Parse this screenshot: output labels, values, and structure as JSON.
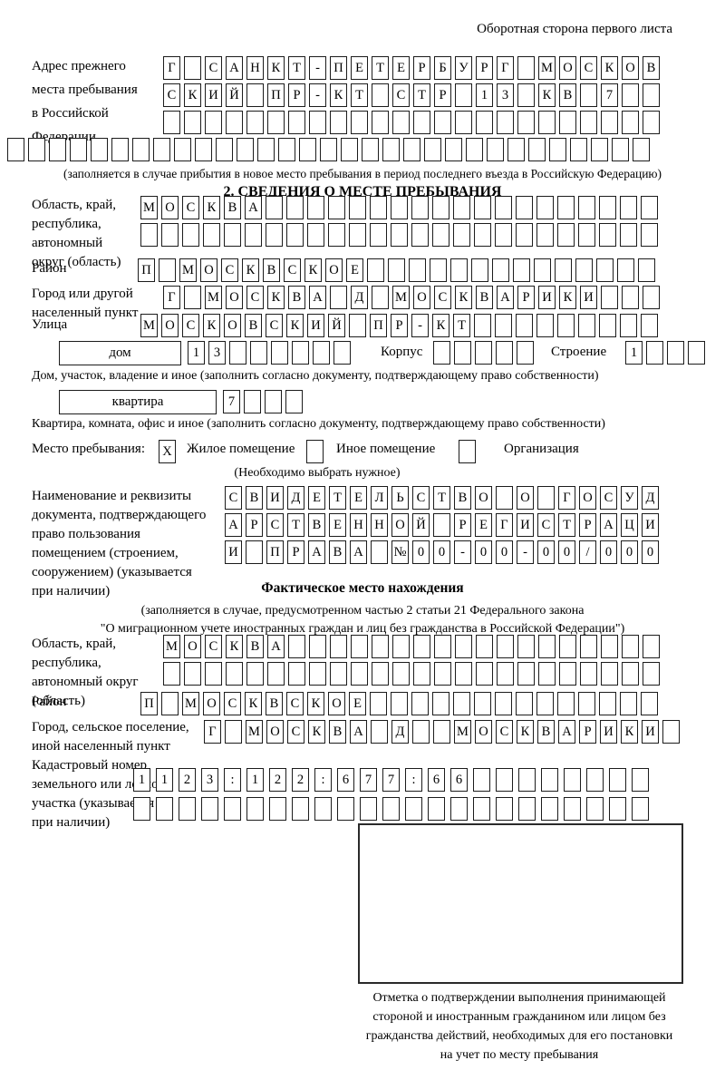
{
  "page": {
    "header_note": "Оборотная сторона первого листа"
  },
  "prev_address": {
    "label_lines": [
      "Адрес прежнего",
      "места пребывания",
      "в Российской",
      "Федерации"
    ],
    "rows": [
      "Г САНКТ-ПЕТЕРБУРГ МОСКОВ",
      "СКИЙ ПР-КТ СТР 13 КВ 7  ",
      "                        ",
      "                               "
    ],
    "note": "(заполняется в случае прибытия в новое место пребывания в период последнего въезда в Российскую Федерацию)"
  },
  "section2": {
    "title": "2. СВЕДЕНИЯ О МЕСТЕ ПРЕБЫВАНИЯ",
    "region": {
      "label_lines": [
        "Область, край,",
        "республика,",
        "автономный",
        "округ (область)"
      ],
      "rows": [
        "МОСКВА                   ",
        "                         "
      ]
    },
    "district": {
      "label": "Район",
      "row": "П МОСКВСКОЕ              "
    },
    "city": {
      "label_lines": [
        "Город или другой",
        "населенный пункт"
      ],
      "row": "Г МОСКВА Д МОСКВАРИКИ   "
    },
    "street": {
      "label": "Улица",
      "row": "МОСКОВСКИЙ ПР-КТ         "
    },
    "house": {
      "box_label": "дом",
      "numbers": "13      ",
      "korpus_label": "Корпус",
      "korpus_boxes": "     ",
      "stroenie_label": "Строение",
      "stroenie_boxes": "1   ",
      "note": "Дом, участок, владение и иное (заполнить согласно документу, подтверждающему право собственности)"
    },
    "apartment": {
      "box_label": "квартира",
      "numbers": "7   ",
      "note": "Квартира, комната, офис и иное (заполнить согласно документу, подтверждающему право собственности)"
    },
    "stay_type": {
      "label": "Место пребывания:",
      "options": [
        {
          "label": "Жилое помещение",
          "checked": "X"
        },
        {
          "label": "Иное помещение",
          "checked": ""
        },
        {
          "label": "Организация",
          "checked": ""
        }
      ],
      "note": "(Необходимо выбрать нужное)"
    },
    "document": {
      "label_lines": [
        "Наименование и реквизиты",
        "документа, подтверждающего",
        "право пользования",
        "помещением (строением,",
        "сооружением) (указывается",
        "при наличии)"
      ],
      "rows": [
        "СВИДЕТЕЛЬСТВО О ГОСУД",
        "АРСТВЕННОЙ РЕГИСТРАЦИ",
        "И ПРАВА №00-00-00/000"
      ]
    }
  },
  "actual_location": {
    "title": "Фактическое место нахождения",
    "note_lines": [
      "(заполняется в случае, предусмотренном частью 2 статьи 21 Федерального закона",
      "\"О миграционном учете иностранных граждан и лиц без гражданства в Российской Федерации\")"
    ],
    "region": {
      "label_lines": [
        "Область, край,",
        "республика,",
        "автономный округ",
        "(область)"
      ],
      "rows": [
        "МОСКВА                  ",
        "                        "
      ]
    },
    "district": {
      "label": "Район",
      "row": "П МОСКВСКОЕ              "
    },
    "city": {
      "label_lines": [
        "Город, сельское поселение,",
        "иной населенный пункт"
      ],
      "row": "Г МОСКВА Д  МОСКВАРИКИ "
    },
    "cadastre": {
      "label_lines": [
        "Кадастровый номер",
        "земельного или лесного",
        "участка (указывается",
        "при наличии)"
      ],
      "rows": [
        "1123:122:677:66        ",
        "                       "
      ]
    },
    "stamp_note_lines": [
      "Отметка о подтверждении выполнения принимающей",
      "стороной и иностранным гражданином или лицом без",
      "гражданства действий, необходимых для его постановки",
      "на учет по месту пребывания"
    ]
  }
}
